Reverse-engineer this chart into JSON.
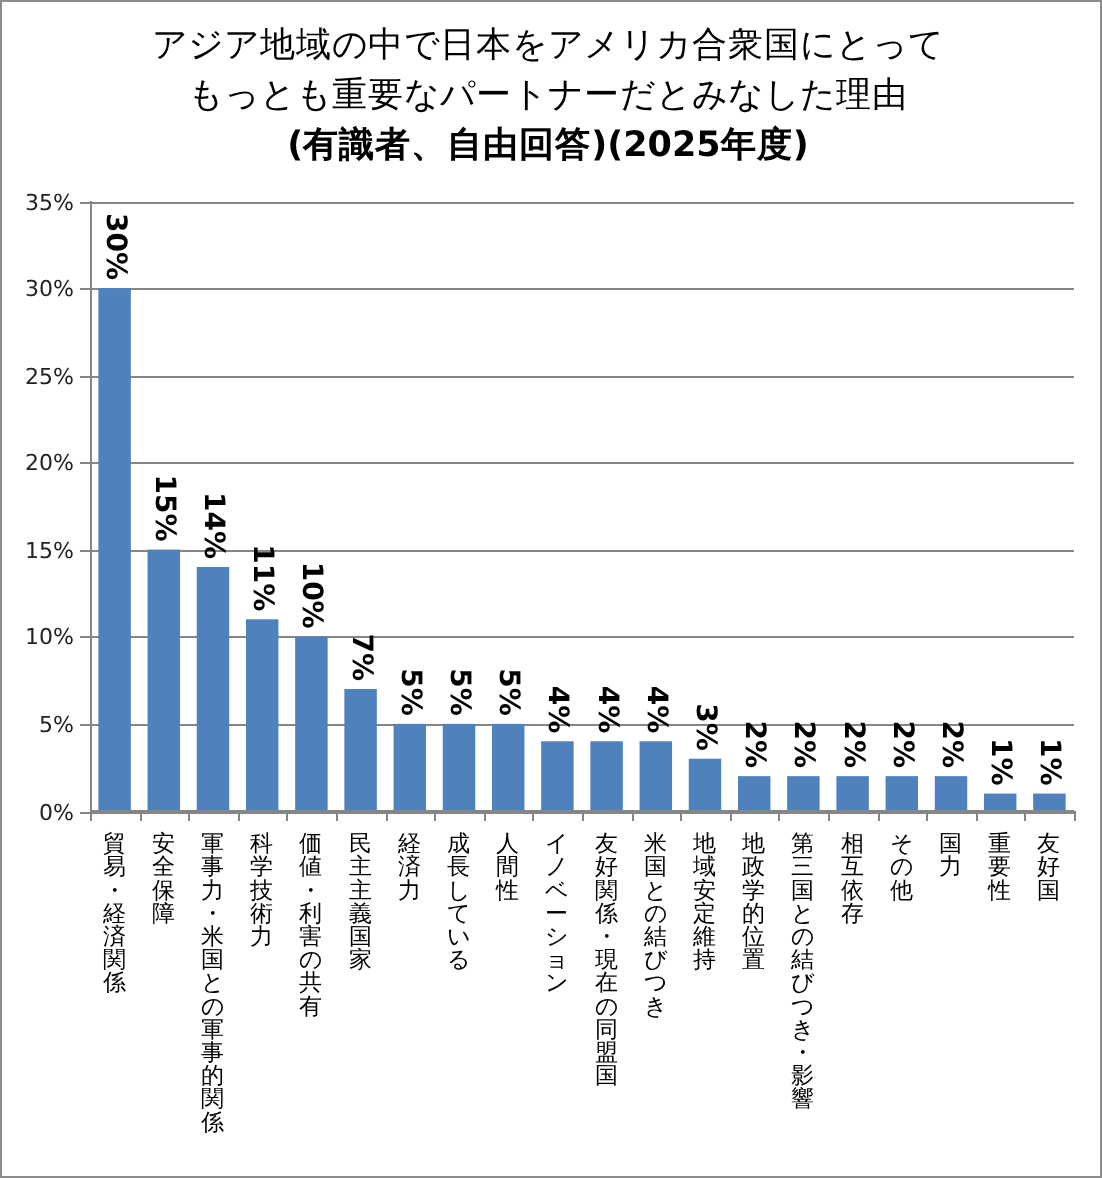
{
  "chart_data": {
    "type": "bar",
    "title": "アジア地域の中で日本をアメリカ合衆国にとってもっとも重要なパートナーだとみなした理由",
    "subtitle": "(有識者、自由回答)(2025年度)",
    "categories": [
      "貿易・経済関係",
      "安全保障",
      "軍事力・米国との軍事的関係",
      "科学技術力",
      "価値・利害の共有",
      "民主主義国家",
      "経済力",
      "成長している",
      "人間性",
      "イノベーション",
      "友好関係・現在の同盟国",
      "米国との結びつき",
      "地域安定維持",
      "地政学的位置",
      "第三国との結びつき・影響",
      "相互依存",
      "その他",
      "国力",
      "重要性",
      "友好国"
    ],
    "values": [
      30,
      15,
      14,
      11,
      10,
      7,
      5,
      5,
      5,
      4,
      4,
      4,
      3,
      2,
      2,
      2,
      2,
      2,
      1,
      1
    ],
    "value_labels": [
      "30%",
      "15%",
      "14%",
      "11%",
      "10%",
      "7%",
      "5%",
      "5%",
      "5%",
      "4%",
      "4%",
      "4%",
      "3%",
      "2%",
      "2%",
      "2%",
      "2%",
      "2%",
      "1%",
      "1%"
    ],
    "color": "#4f81bd",
    "ylim": [
      0,
      35
    ],
    "yticks": [
      {
        "value": 0,
        "label": "0%"
      },
      {
        "value": 5,
        "label": "5%"
      },
      {
        "value": 10,
        "label": "10%"
      },
      {
        "value": 15,
        "label": "15%"
      },
      {
        "value": 20,
        "label": "20%"
      },
      {
        "value": 25,
        "label": "25%"
      },
      {
        "value": 30,
        "label": "30%"
      },
      {
        "value": 35,
        "label": "35%"
      }
    ],
    "grid": "y"
  }
}
